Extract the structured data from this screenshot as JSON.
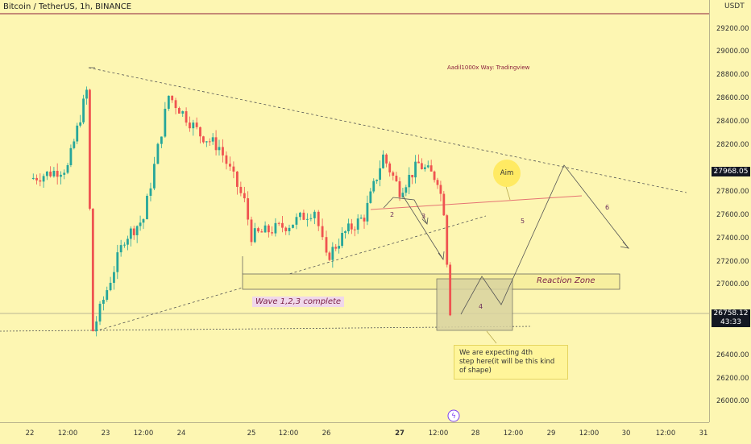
{
  "header": {
    "title": "Bitcoin / TetherUS, 1h, BINANCE"
  },
  "axis": {
    "unit": "USDT",
    "y_ticks": [
      "29200.00",
      "29000.00",
      "28800.00",
      "28600.00",
      "28400.00",
      "28200.00",
      "27800.00",
      "27600.00",
      "27400.00",
      "27200.00",
      "27000.00",
      "26400.00",
      "26200.00",
      "26000.00"
    ],
    "x_ticks": [
      "22",
      "12:00",
      "23",
      "12:00",
      "24",
      "25",
      "12:00",
      "26",
      "27",
      "12:00",
      "28",
      "12:00",
      "29",
      "12:00",
      "30",
      "12:00",
      "31"
    ],
    "price_badge": "27968.05",
    "last_price": "26758.12",
    "countdown": "43:33"
  },
  "annotations": {
    "watermark": "Aadil1000x Way: Tradingview",
    "aim": "Aim",
    "reaction_zone": "Reaction Zone",
    "wave_complete": "Wave 1,2,3 complete",
    "note_line1": "We are expecting 4th",
    "note_line2": "step here(it will be this kind of shape)",
    "wave_labels": [
      "2",
      "3",
      "4",
      "5",
      "6"
    ]
  },
  "colors": {
    "background": "#fdf6b2",
    "up": "#26a69a",
    "down": "#ef5350"
  },
  "chart_data": {
    "type": "candlestick",
    "title": "Bitcoin / TetherUS, 1h, BINANCE",
    "ylim": [
      25900,
      29350
    ],
    "last_price": 26758.12,
    "marked_price": 27968.05,
    "close_path": [
      {
        "x": "22 00:00",
        "y": 27950
      },
      {
        "x": "22 12:00",
        "y": 28050
      },
      {
        "x": "22 18:00",
        "y": 28720
      },
      {
        "x": "22 20:00",
        "y": 26620
      },
      {
        "x": "23 06:00",
        "y": 27430
      },
      {
        "x": "23 12:00",
        "y": 27600
      },
      {
        "x": "23 20:00",
        "y": 28680
      },
      {
        "x": "24 06:00",
        "y": 28340
      },
      {
        "x": "24 12:00",
        "y": 28230
      },
      {
        "x": "24 20:00",
        "y": 27750
      },
      {
        "x": "25 00:00",
        "y": 27450
      },
      {
        "x": "25 12:00",
        "y": 27550
      },
      {
        "x": "25 20:00",
        "y": 27680
      },
      {
        "x": "26 00:00",
        "y": 27250
      },
      {
        "x": "26 06:00",
        "y": 27480
      },
      {
        "x": "26 12:00",
        "y": 27620
      },
      {
        "x": "26 18:00",
        "y": 28150
      },
      {
        "x": "27 00:00",
        "y": 27850
      },
      {
        "x": "27 06:00",
        "y": 28080
      },
      {
        "x": "27 12:00",
        "y": 27950
      },
      {
        "x": "27 14:00",
        "y": 27680
      },
      {
        "x": "27 16:00",
        "y": 26800
      }
    ]
  }
}
